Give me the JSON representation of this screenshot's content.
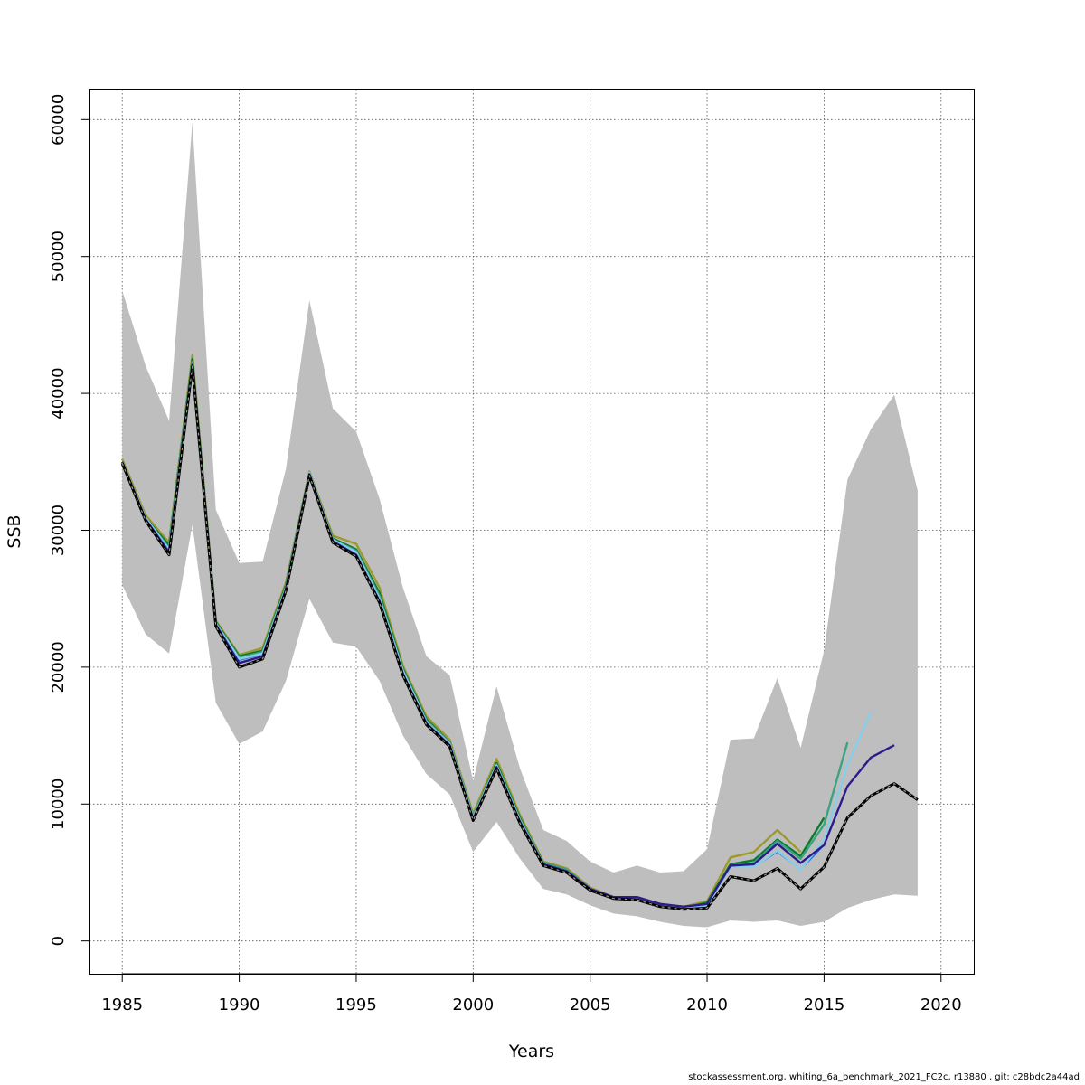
{
  "chart_data": {
    "type": "line",
    "xlabel": "Years",
    "ylabel": "SSB",
    "xlim": [
      1983.6,
      2021.4
    ],
    "ylim": [
      -2400,
      62200
    ],
    "x_ticks": [
      1985,
      1990,
      1995,
      2000,
      2005,
      2010,
      2015,
      2020
    ],
    "y_ticks": [
      0,
      10000,
      20000,
      30000,
      40000,
      50000,
      60000
    ],
    "grid": true,
    "legend": "none",
    "band": {
      "color": "#bebebe",
      "x": [
        1985,
        1986,
        1987,
        1988,
        1989,
        1990,
        1991,
        1992,
        1993,
        1994,
        1995,
        1996,
        1997,
        1998,
        1999,
        2000,
        2001,
        2002,
        2003,
        2004,
        2005,
        2006,
        2007,
        2008,
        2009,
        2010,
        2011,
        2012,
        2013,
        2014,
        2015,
        2016,
        2017,
        2018,
        2019
      ],
      "upper": [
        47500,
        42000,
        38000,
        59800,
        31500,
        27600,
        27700,
        34500,
        46800,
        38900,
        37200,
        32300,
        25800,
        20800,
        19400,
        11700,
        18600,
        12600,
        8100,
        7300,
        5800,
        5000,
        5500,
        5000,
        5100,
        6700,
        14700,
        14800,
        19200,
        14100,
        21200,
        33700,
        37400,
        39900,
        32900
      ],
      "lower": [
        26000,
        22400,
        21000,
        30400,
        17400,
        14400,
        15300,
        19000,
        25000,
        21800,
        21500,
        19000,
        15000,
        12200,
        10700,
        6500,
        8700,
        6000,
        3800,
        3400,
        2600,
        2000,
        1800,
        1400,
        1100,
        1000,
        1500,
        1400,
        1500,
        1100,
        1400,
        2400,
        3000,
        3400,
        3300
      ]
    },
    "series": [
      {
        "color": "#222222",
        "dashed": true,
        "width": 2.4,
        "x": [
          1985,
          1986,
          1987,
          1988,
          1989,
          1990,
          1991,
          1992,
          1993,
          1994,
          1995,
          1996,
          1997,
          1998,
          1999,
          2000,
          2001,
          2002,
          2003,
          2004,
          2005,
          2006,
          2007,
          2008,
          2009,
          2010,
          2011,
          2012,
          2013,
          2014,
          2015,
          2016,
          2017,
          2018,
          2019
        ],
        "values": [
          34900,
          30700,
          28200,
          42000,
          23000,
          20000,
          20600,
          25600,
          34000,
          29100,
          28100,
          24700,
          19400,
          15800,
          14200,
          8800,
          12600,
          8600,
          5500,
          5000,
          3700,
          3100,
          3000,
          2500,
          2300,
          2400,
          4700,
          4400,
          5300,
          3800,
          5400,
          9000,
          10600,
          11500,
          10300
        ]
      },
      {
        "color": "#2e1a8c",
        "width": 2.4,
        "x": [
          1985,
          1986,
          1987,
          1988,
          1989,
          1990,
          1991,
          1992,
          1993,
          1994,
          1995,
          1996,
          1997,
          1998,
          1999,
          2000,
          2001,
          2002,
          2003,
          2004,
          2005,
          2006,
          2007,
          2008,
          2009,
          2010,
          2011,
          2012,
          2013,
          2014,
          2015,
          2016,
          2017,
          2018
        ],
        "values": [
          35000,
          30800,
          28400,
          42100,
          23100,
          20300,
          20800,
          25700,
          34100,
          29200,
          28200,
          24800,
          19500,
          15900,
          14300,
          8900,
          12700,
          8700,
          5600,
          5100,
          3800,
          3200,
          3200,
          2700,
          2500,
          2700,
          5500,
          5600,
          7100,
          5700,
          7000,
          11300,
          13400,
          14300
        ]
      },
      {
        "color": "#87ceeb",
        "width": 2.4,
        "x": [
          1985,
          1986,
          1987,
          1988,
          1989,
          1990,
          1991,
          1992,
          1993,
          1994,
          1995,
          1996,
          1997,
          1998,
          1999,
          2000,
          2001,
          2002,
          2003,
          2004,
          2005,
          2006,
          2007,
          2008,
          2009,
          2010,
          2011,
          2012,
          2013,
          2014,
          2015,
          2016,
          2017
        ],
        "values": [
          35000,
          30900,
          28600,
          42200,
          23200,
          20600,
          21000,
          25800,
          34200,
          29300,
          28400,
          25000,
          19700,
          16000,
          14400,
          9000,
          12800,
          8800,
          5600,
          5100,
          3800,
          3100,
          3100,
          2600,
          2400,
          2600,
          5400,
          5400,
          6600,
          5200,
          7400,
          12900,
          16700
        ]
      },
      {
        "color": "#1e6fd9",
        "width": 1.4,
        "x": [
          1985,
          1986,
          1987,
          1988,
          1989,
          1990,
          1991,
          1992,
          1993,
          1994,
          1995,
          1996,
          1997,
          1998,
          1999,
          2000,
          2001,
          2002,
          2003,
          2004,
          2005,
          2006,
          2007,
          2008,
          2009,
          2010,
          2011,
          2012,
          2013,
          2014,
          2015
        ],
        "values": [
          34950,
          30800,
          28500,
          42150,
          23150,
          20500,
          20950,
          25750,
          34150,
          29250,
          28300,
          24900,
          19600,
          15950,
          14350,
          8950,
          12750,
          8750,
          5600,
          5100,
          3800,
          3100,
          3100,
          2600,
          2400,
          2600,
          5400,
          5400,
          6500,
          5200,
          7000
        ]
      },
      {
        "color": "#3aa383",
        "width": 2.4,
        "x": [
          1985,
          1986,
          1987,
          1988,
          1989,
          1990,
          1991,
          1992,
          1993,
          1994,
          1995,
          1996,
          1997,
          1998,
          1999,
          2000,
          2001,
          2002,
          2003,
          2004,
          2005,
          2006,
          2007,
          2008,
          2009,
          2010,
          2011,
          2012,
          2013,
          2014,
          2015,
          2016
        ],
        "values": [
          35000,
          30900,
          28700,
          42300,
          23200,
          20700,
          21100,
          25900,
          34200,
          29300,
          28500,
          25200,
          19800,
          16100,
          14500,
          9100,
          12900,
          8900,
          5700,
          5200,
          3800,
          3100,
          3100,
          2600,
          2400,
          2700,
          5500,
          5700,
          7300,
          6000,
          8500,
          14500
        ]
      },
      {
        "color": "#0a7a2c",
        "width": 2.4,
        "x": [
          1985,
          1986,
          1987,
          1988,
          1989,
          1990,
          1991,
          1992,
          1993,
          1994,
          1995,
          1996,
          1997,
          1998,
          1999,
          2000,
          2001,
          2002,
          2003,
          2004,
          2005,
          2006,
          2007,
          2008,
          2009,
          2010,
          2011,
          2012,
          2013,
          2014,
          2015
        ],
        "values": [
          34800,
          30900,
          28900,
          42500,
          23300,
          20800,
          21200,
          26000,
          34200,
          29400,
          28600,
          25400,
          19900,
          16200,
          14500,
          9100,
          13000,
          9000,
          5700,
          5200,
          3800,
          3100,
          3100,
          2600,
          2400,
          2800,
          5600,
          5900,
          7400,
          6200,
          9000
        ]
      },
      {
        "color": "#9a9a2e",
        "width": 2.4,
        "x": [
          1985,
          1986,
          1987,
          1988,
          1989,
          1990,
          1991,
          1992,
          1993,
          1994,
          1995,
          1996,
          1997,
          1998,
          1999,
          2000,
          2001,
          2002,
          2003,
          2004,
          2005,
          2006,
          2007,
          2008,
          2009,
          2010,
          2011,
          2012,
          2013,
          2014
        ],
        "values": [
          35200,
          31100,
          29100,
          42800,
          23400,
          20900,
          21400,
          26200,
          34300,
          29600,
          29000,
          25800,
          20100,
          16400,
          14700,
          9300,
          13300,
          9200,
          5800,
          5300,
          3900,
          3200,
          3200,
          2700,
          2500,
          2900,
          6100,
          6500,
          8100,
          6500
        ]
      }
    ]
  },
  "footer": "stockassessment.org, whiting_6a_benchmark_2021_FC2c, r13880 , git: c28bdc2a44ad"
}
